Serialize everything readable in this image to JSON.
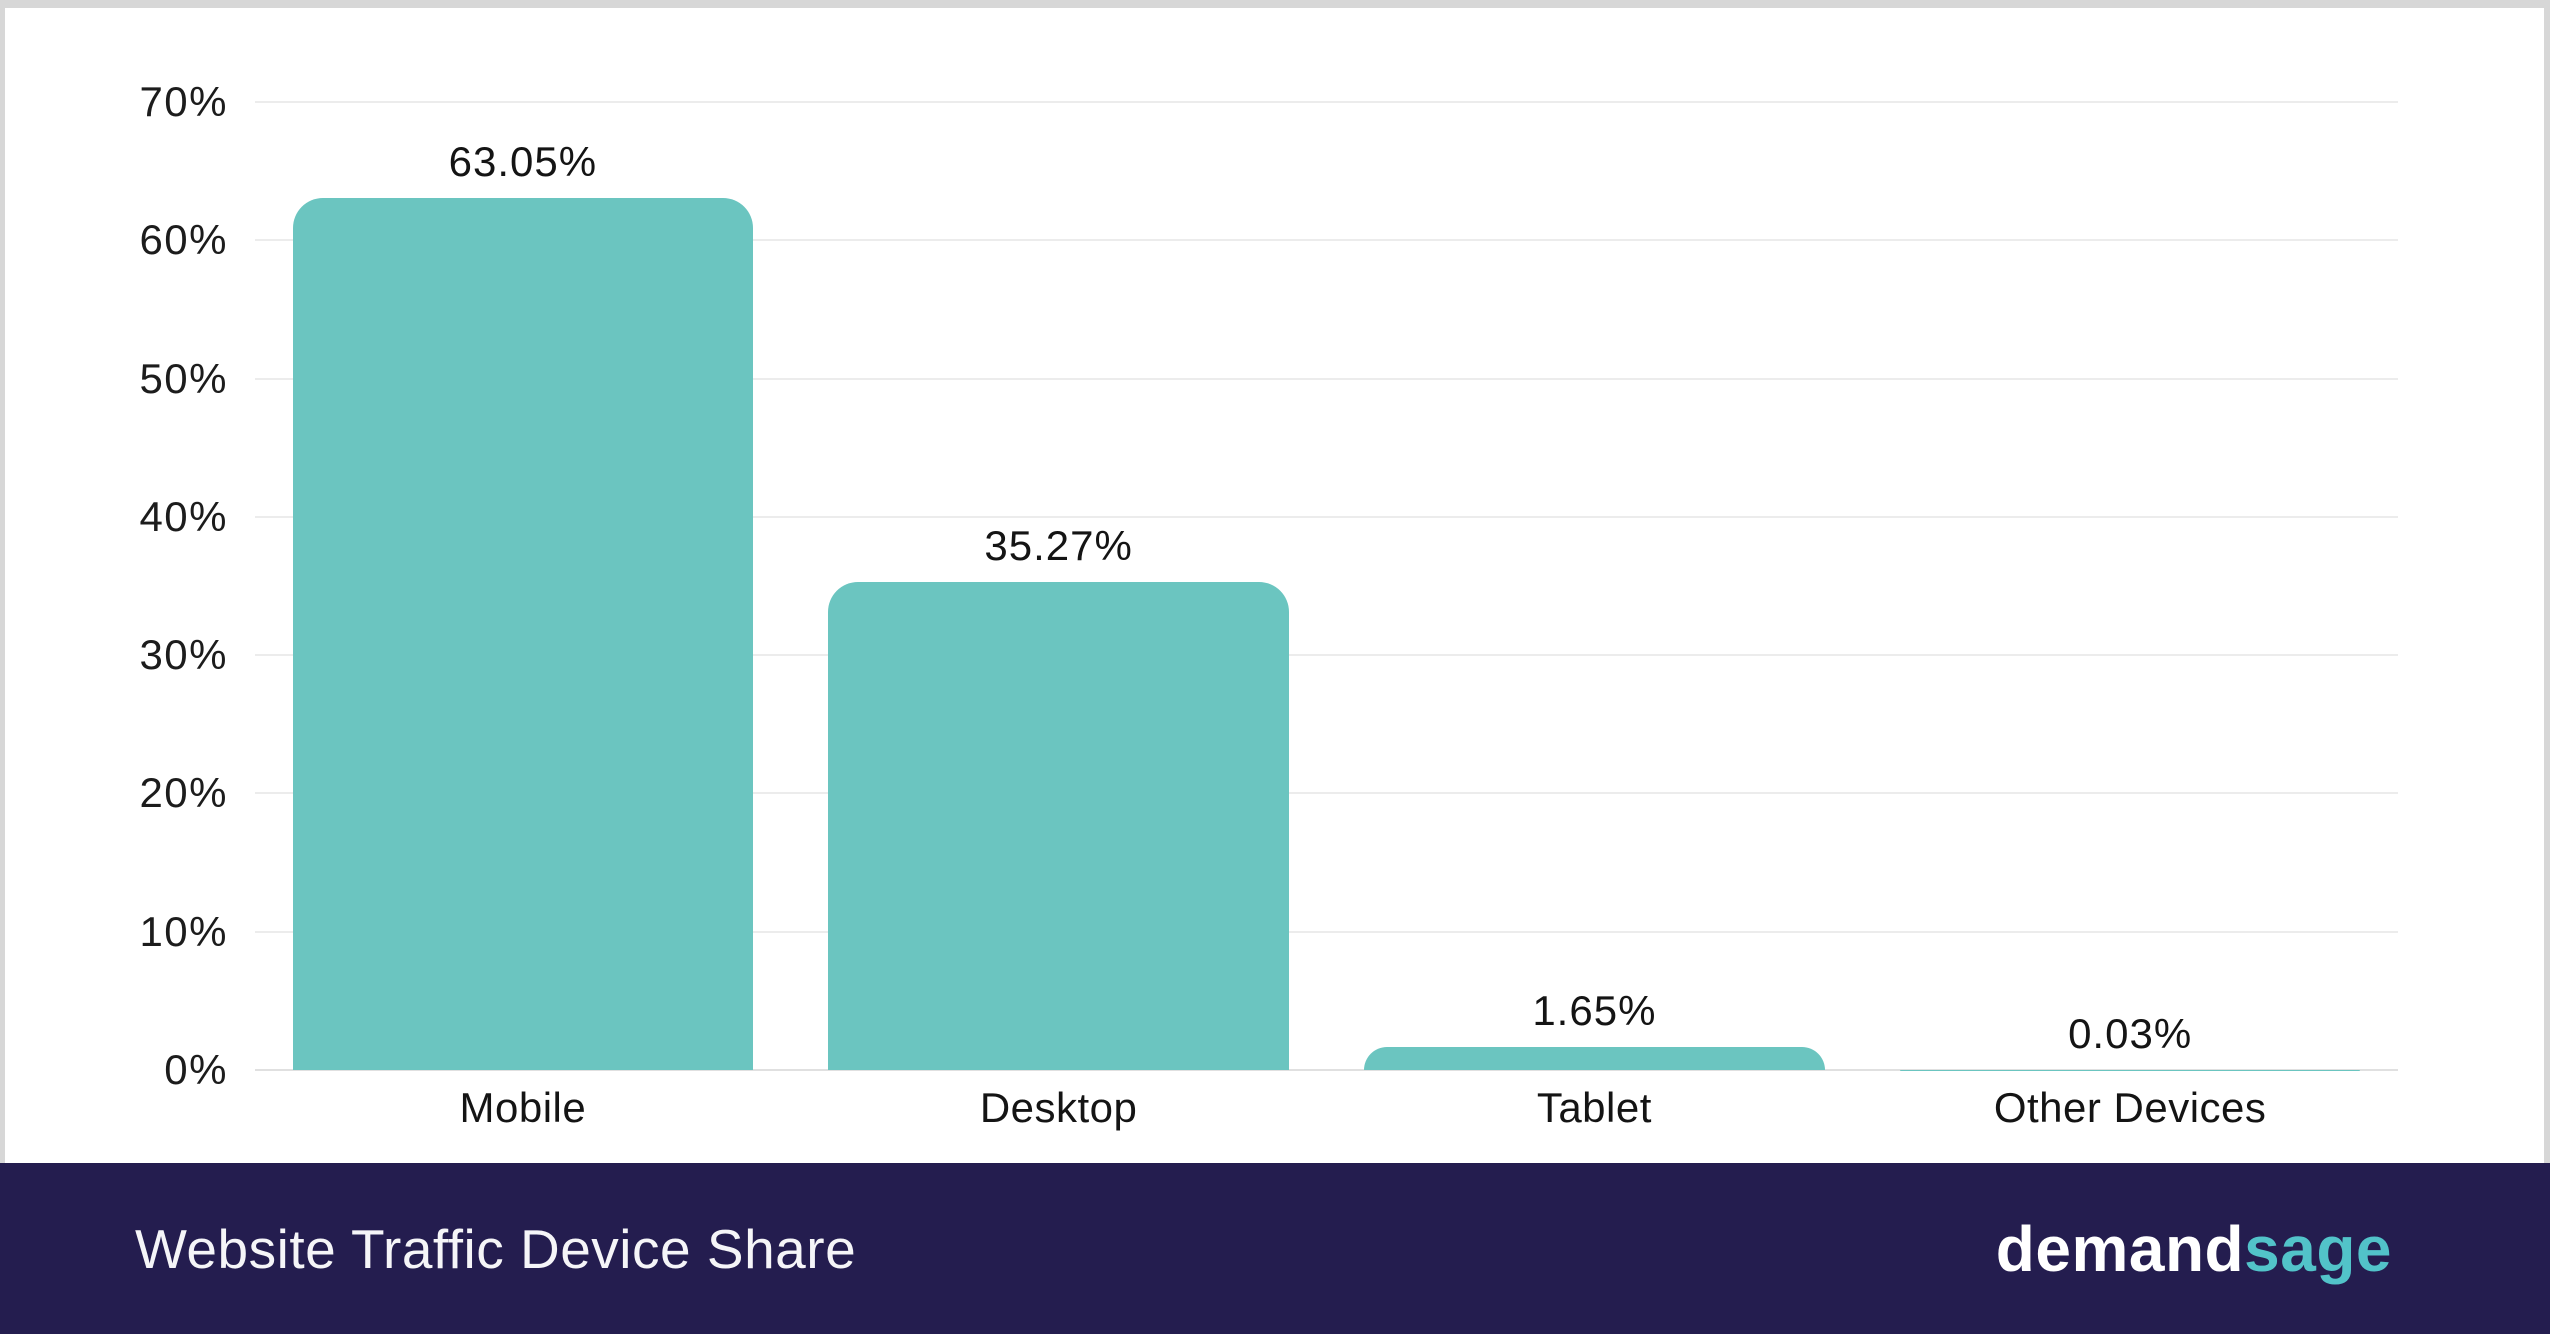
{
  "chart_data": {
    "type": "bar",
    "title": "Website Traffic Device Share",
    "categories": [
      "Mobile",
      "Desktop",
      "Tablet",
      "Other Devices"
    ],
    "values": [
      63.05,
      35.27,
      1.65,
      0.03
    ],
    "value_labels": [
      "63.05%",
      "35.27%",
      "1.65%",
      "0.03%"
    ],
    "xlabel": "",
    "ylabel": "",
    "ylim": [
      0,
      70
    ],
    "y_tick_values": [
      0,
      10,
      20,
      30,
      40,
      50,
      60,
      70
    ],
    "y_tick_labels": [
      "0%",
      "10%",
      "20%",
      "30%",
      "40%",
      "50%",
      "60%",
      "70%"
    ],
    "grid": true,
    "legend": "none",
    "bar_color": "#6bc5c0"
  },
  "footer": {
    "title": "Website Traffic Device Share",
    "logo": {
      "part1": "demand",
      "part2": "sage"
    }
  },
  "colors": {
    "bar": "#6bc5c0",
    "footer_background": "#241d4f",
    "logo_accent": "#52c3c9",
    "gridline": "#ececec",
    "frame_border": "#d7d7d7",
    "text": "#141414"
  }
}
